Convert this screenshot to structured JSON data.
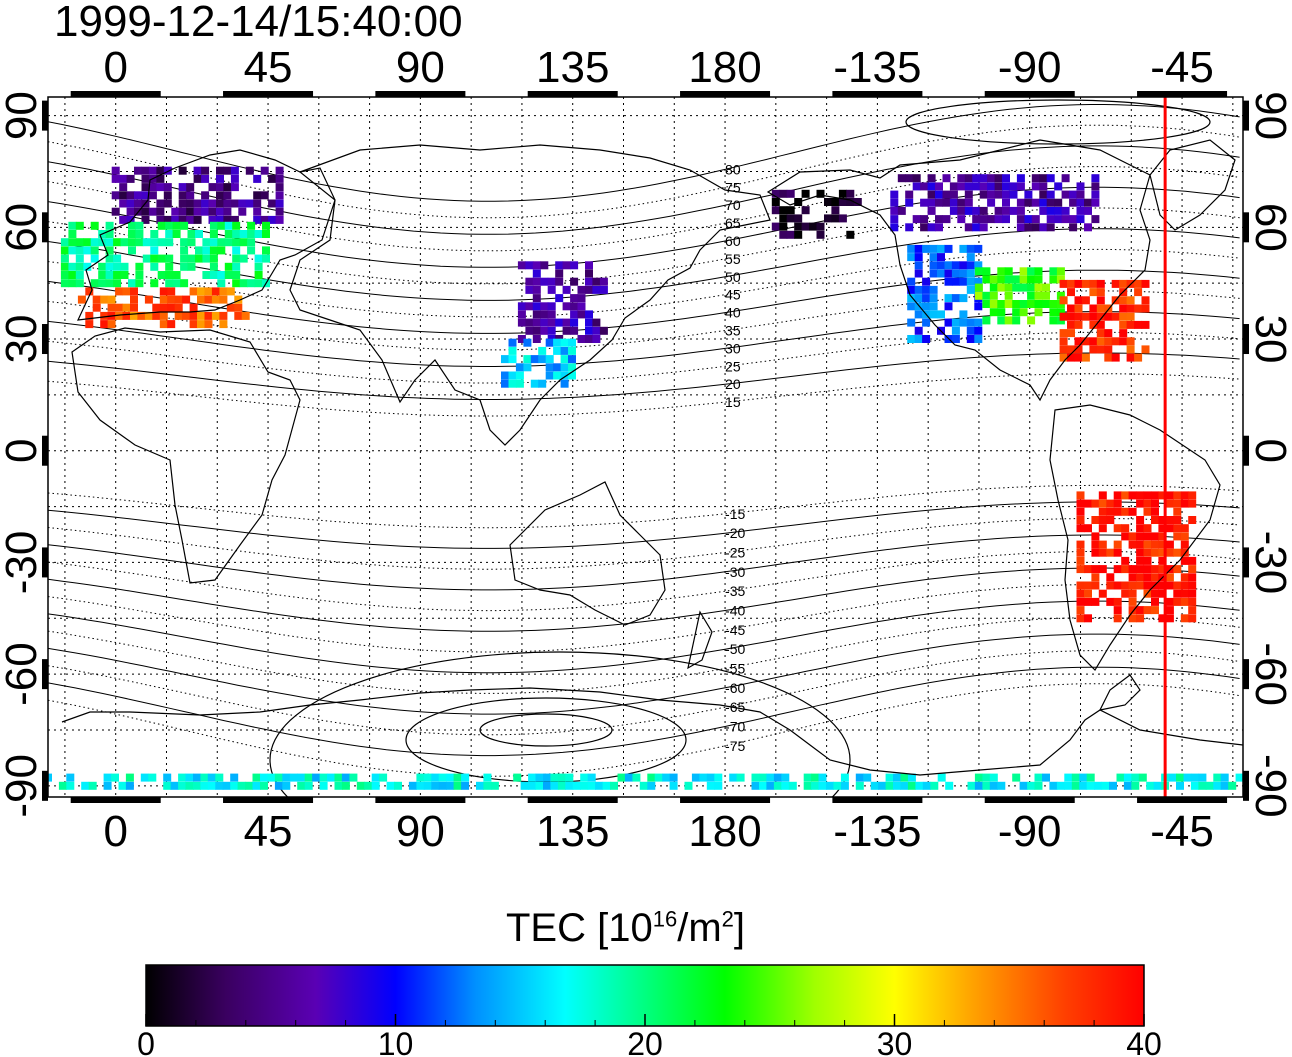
{
  "title": "1999-12-14/15:40:00",
  "map": {
    "lon_ticks_top": [
      "0",
      "45",
      "90",
      "135",
      "180",
      "-135",
      "-90",
      "-45"
    ],
    "lon_ticks_bottom": [
      "0",
      "45",
      "90",
      "135",
      "180",
      "-135",
      "-90",
      "-45"
    ],
    "lat_ticks_left": [
      "90",
      "60",
      "30",
      "0",
      "-30",
      "-60",
      "-90"
    ],
    "lat_ticks_right": [
      "90",
      "60",
      "30",
      "0",
      "-30",
      "-60",
      "-90"
    ],
    "lon_range": [
      -20,
      333
    ],
    "lat_range": [
      -93,
      95
    ],
    "grid": "dotted, 15° spacing",
    "terminator_longitude": -50,
    "terminator_color": "#ff0000",
    "contour_labels": [
      "80",
      "75",
      "70",
      "65",
      "60",
      "55",
      "50",
      "45",
      "40",
      "35",
      "30",
      "25",
      "20",
      "15",
      "-15",
      "-20",
      "-25",
      "-30",
      "-35",
      "-40",
      "-45",
      "-50",
      "-55",
      "-60",
      "-65",
      "-70",
      "-75"
    ]
  },
  "colorbar": {
    "label_main": "TEC  [10",
    "label_sup1": "16",
    "label_mid": "/m",
    "label_sup2": "2",
    "label_end": "]",
    "ticks": [
      "0",
      "10",
      "20",
      "30",
      "40"
    ],
    "min": 0,
    "max": 40,
    "colors": [
      "#000000",
      "#3a0060",
      "#5a00b4",
      "#0000ff",
      "#0090ff",
      "#00ffff",
      "#00ff80",
      "#00ff00",
      "#a0ff00",
      "#ffff00",
      "#ffa000",
      "#ff4000",
      "#ff0000"
    ]
  },
  "tec_regions": [
    {
      "region": "europe-north",
      "lon_range": [
        0,
        50
      ],
      "lat_range": [
        62,
        76
      ],
      "tec": 5
    },
    {
      "region": "europe-central",
      "lon_range": [
        -15,
        45
      ],
      "lat_range": [
        45,
        62
      ],
      "tec": 20
    },
    {
      "region": "europe-south",
      "lon_range": [
        -10,
        40
      ],
      "lat_range": [
        34,
        45
      ],
      "tec": 36
    },
    {
      "region": "north-america-west",
      "lon_range": [
        -125,
        -105
      ],
      "lat_range": [
        30,
        55
      ],
      "tec": 12
    },
    {
      "region": "north-america-central",
      "lon_range": [
        -105,
        -80
      ],
      "lat_range": [
        35,
        50
      ],
      "tec": 24
    },
    {
      "region": "north-america-east",
      "lon_range": [
        -80,
        -55
      ],
      "lat_range": [
        25,
        45
      ],
      "tec": 38
    },
    {
      "region": "alaska",
      "lon_range": [
        -165,
        -140
      ],
      "lat_range": [
        58,
        70
      ],
      "tec": 1
    },
    {
      "region": "canada-north",
      "lon_range": [
        -130,
        -70
      ],
      "lat_range": [
        60,
        75
      ],
      "tec": 6
    },
    {
      "region": "east-asia",
      "lon_range": [
        120,
        145
      ],
      "lat_range": [
        30,
        50
      ],
      "tec": 6
    },
    {
      "region": "east-asia-south",
      "lon_range": [
        115,
        135
      ],
      "lat_range": [
        18,
        30
      ],
      "tec": 15
    },
    {
      "region": "south-america",
      "lon_range": [
        -75,
        -40
      ],
      "lat_range": [
        -45,
        -10
      ],
      "tec": 39
    },
    {
      "region": "antarctic-coast",
      "lon_range": [
        -20,
        333
      ],
      "lat_range": [
        -90,
        -86
      ],
      "tec": 17
    }
  ]
}
